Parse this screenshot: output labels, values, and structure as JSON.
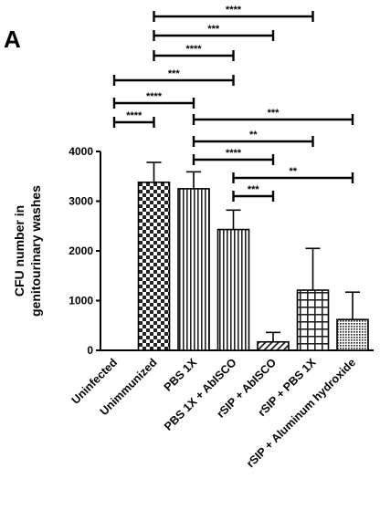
{
  "chart_data": {
    "type": "bar",
    "panel_label": "A",
    "ylabel": [
      "CFU number in",
      "genitourinary washes"
    ],
    "ylim": [
      0,
      4000
    ],
    "yticks": [
      "0",
      "1000",
      "2000",
      "3000",
      "4000"
    ],
    "categories": [
      "Uninfected",
      "Unimmunized",
      "PBS 1X",
      "PBS 1X + AbISCO",
      "rSIP + AbISCO",
      "rSIP + PBS 1X",
      "rSIP + Aluminum hydroxide"
    ],
    "values": [
      0,
      3380,
      3250,
      2430,
      170,
      1210,
      620
    ],
    "errors": [
      0,
      400,
      340,
      390,
      190,
      840,
      550
    ],
    "patterns": [
      "none",
      "checker",
      "vertical",
      "vertical",
      "diagonal",
      "grid",
      "dots"
    ],
    "comparisons": [
      {
        "from": 1,
        "to": 5,
        "label": "****"
      },
      {
        "from": 1,
        "to": 4,
        "label": "***"
      },
      {
        "from": 1,
        "to": 3,
        "label": "****"
      },
      {
        "from": 0,
        "to": 3,
        "label": "***"
      },
      {
        "from": 0,
        "to": 2,
        "label": "****"
      },
      {
        "from": 0,
        "to": 1,
        "label": "****"
      },
      {
        "from": 2,
        "to": 6,
        "label": "***"
      },
      {
        "from": 2,
        "to": 5,
        "label": "**"
      },
      {
        "from": 2,
        "to": 4,
        "label": "****"
      },
      {
        "from": 3,
        "to": 6,
        "label": "**"
      },
      {
        "from": 3,
        "to": 4,
        "label": "***"
      }
    ]
  }
}
